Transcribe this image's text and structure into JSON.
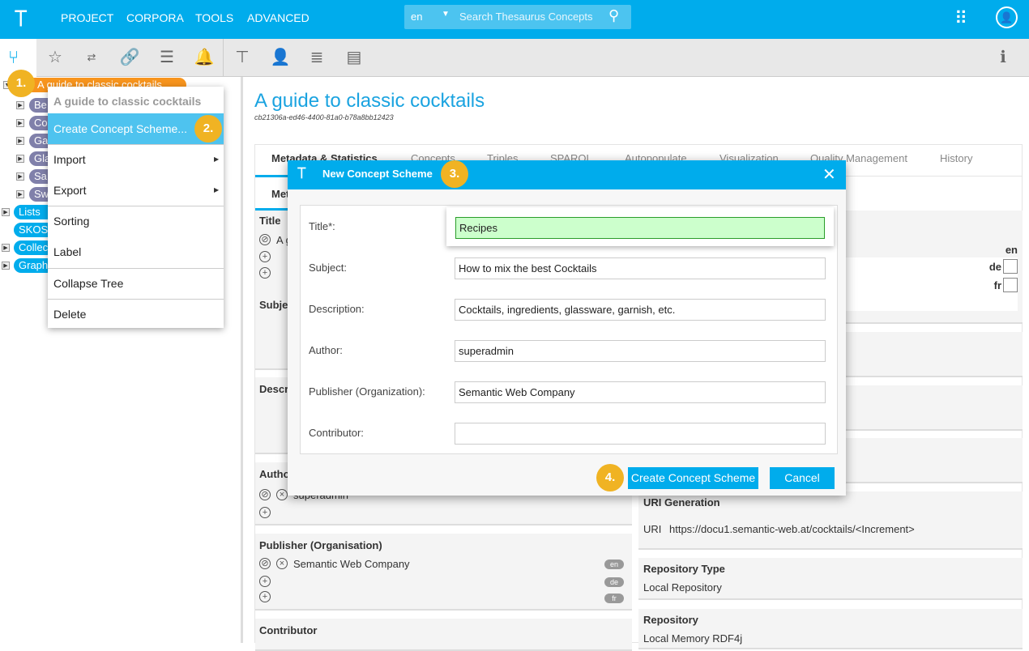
{
  "header": {
    "nav": [
      "PROJECT",
      "CORPORA",
      "TOOLS",
      "ADVANCED"
    ],
    "search_lang": "en",
    "search_placeholder": "Search Thesaurus Concepts"
  },
  "tree": {
    "root": "A guide to classic cocktails",
    "children": [
      "Be",
      "Co",
      "Ga",
      "Gla",
      "Sa",
      "Sw"
    ],
    "top_items": [
      "Lists",
      "SKOS",
      "Collec",
      "Graph"
    ]
  },
  "context_menu": {
    "title": "A guide to classic cocktails",
    "items": [
      "Create Concept Scheme...",
      "Import",
      "Export",
      "Sorting",
      "Label",
      "Collapse Tree",
      "Delete"
    ]
  },
  "steps": [
    "1.",
    "2.",
    "3.",
    "4."
  ],
  "page": {
    "title": "A guide to classic cocktails",
    "id": "cb21306a-ed46-4400-81a0-b78a8bb12423",
    "tabs": [
      "Metadata & Statistics",
      "Concepts",
      "Triples",
      "SPARQL",
      "Autopopulate",
      "Visualization",
      "Quality Management",
      "History"
    ],
    "subtab": "Met",
    "left_sections": [
      {
        "title": "Title",
        "value": "A g"
      },
      {
        "title": "Subje"
      },
      {
        "title": "Descr"
      },
      {
        "title": "Autho",
        "value": "superadmin"
      },
      {
        "title": "Publisher (Organisation)",
        "value": "Semantic Web Company",
        "langs": [
          "en",
          "de",
          "fr"
        ]
      },
      {
        "title": "Contributor"
      }
    ],
    "right_langs": [
      "en",
      "de",
      "fr"
    ],
    "uri_generation": {
      "title": "URI Generation",
      "label": "URI",
      "value": "https://docu1.semantic-web.at/cocktails/<Increment>"
    },
    "repository_type": {
      "title": "Repository Type",
      "value": "Local Repository"
    },
    "repository": {
      "title": "Repository",
      "value": "Local Memory RDF4j"
    }
  },
  "dialog": {
    "title": "New Concept Scheme",
    "fields": [
      {
        "label": "Title*:",
        "value": "Recipes"
      },
      {
        "label": "Subject:",
        "value": "How to mix the best Cocktails"
      },
      {
        "label": "Description:",
        "value": "Cocktails, ingredients, glassware, garnish, etc."
      },
      {
        "label": "Author:",
        "value": "superadmin"
      },
      {
        "label": "Publisher (Organization):",
        "value": "Semantic Web Company"
      },
      {
        "label": "Contributor:",
        "value": ""
      }
    ],
    "create_label": "Create Concept Scheme",
    "cancel_label": "Cancel"
  }
}
